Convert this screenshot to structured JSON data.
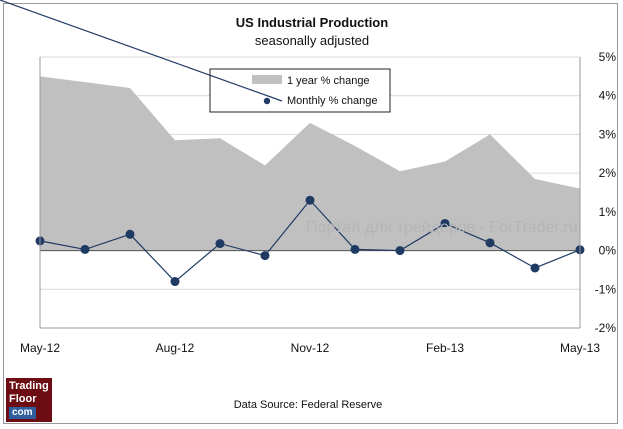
{
  "chart_data": {
    "type": "area+line",
    "title": "US Industrial Production",
    "subtitle": "seasonally adjusted",
    "x_tick_labels": [
      "May-12",
      "Aug-12",
      "Nov-12",
      "Feb-13",
      "May-13"
    ],
    "months": [
      "May-12",
      "Jun-12",
      "Jul-12",
      "Aug-12",
      "Sep-12",
      "Oct-12",
      "Nov-12",
      "Dec-12",
      "Jan-13",
      "Feb-13",
      "Mar-13",
      "Apr-13",
      "May-13"
    ],
    "series": [
      {
        "name": "1 year % change",
        "kind": "area",
        "color": "#c0c0c0",
        "values": [
          4.5,
          4.35,
          4.2,
          2.85,
          2.9,
          2.2,
          3.3,
          2.7,
          2.05,
          2.3,
          3.0,
          1.85,
          1.6
        ]
      },
      {
        "name": "Monthly % change",
        "kind": "line",
        "color": "#1f3a63",
        "values": [
          0.25,
          0.03,
          0.42,
          -0.8,
          0.18,
          -0.13,
          1.3,
          0.03,
          0.0,
          0.7,
          0.2,
          -0.45,
          0.02
        ]
      }
    ],
    "y_axis": {
      "min": -2,
      "max": 5,
      "step": 1,
      "tick_labels": [
        "5%",
        "4%",
        "3%",
        "2%",
        "1%",
        "0%",
        "-1%",
        "-2%"
      ],
      "side": "right"
    },
    "grid": true,
    "legend_position": "top-center"
  },
  "source_text": "Data Source: Federal Reserve",
  "watermark": "Портал для трейдеров - ForTrader.ru",
  "logo": {
    "line1": "Trading",
    "line2": "Floor",
    "line3": "com"
  }
}
